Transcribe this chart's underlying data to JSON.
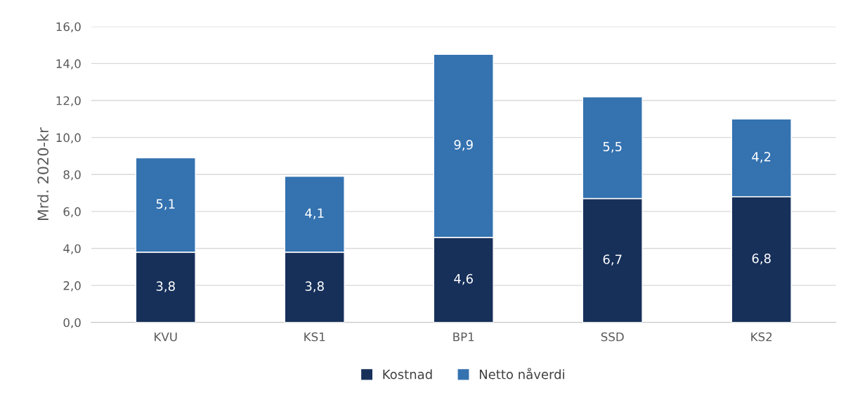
{
  "chart_data": {
    "type": "bar",
    "stacked": true,
    "ylabel": "Mrd. 2020-kr",
    "categories": [
      "KVU",
      "KS1",
      "BP1",
      "SSD",
      "KS2"
    ],
    "series": [
      {
        "name": "Kostnad",
        "color": "#17305a",
        "values": [
          3.8,
          3.8,
          4.6,
          6.7,
          6.8
        ],
        "value_labels": [
          "3,8",
          "3,8",
          "4,6",
          "6,7",
          "6,8"
        ]
      },
      {
        "name": "Netto nåverdi",
        "color": "#3472b0",
        "values": [
          5.1,
          4.1,
          9.9,
          5.5,
          4.2
        ],
        "value_labels": [
          "5,1",
          "4,1",
          "9,9",
          "5,5",
          "4,2"
        ]
      }
    ],
    "ylim": [
      0,
      16
    ],
    "yticks": [
      {
        "value": 0,
        "label": "0,0"
      },
      {
        "value": 2,
        "label": "2,0"
      },
      {
        "value": 4,
        "label": "4,0"
      },
      {
        "value": 6,
        "label": "6,0"
      },
      {
        "value": 8,
        "label": "8,0"
      },
      {
        "value": 10,
        "label": "10,0"
      },
      {
        "value": 12,
        "label": "12,0"
      },
      {
        "value": 14,
        "label": "14,0"
      },
      {
        "value": 16,
        "label": "16,0"
      }
    ],
    "grid": "y",
    "legend": "bottom"
  }
}
